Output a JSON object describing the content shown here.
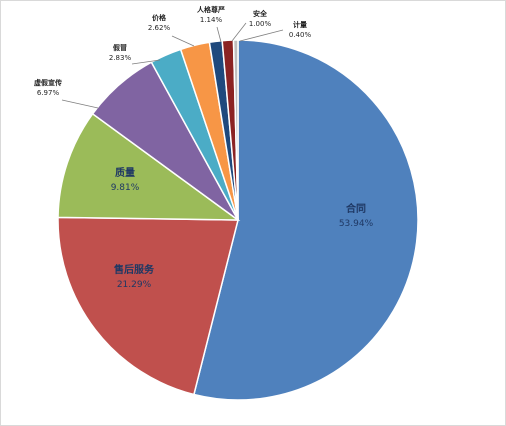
{
  "chart_data": {
    "type": "pie",
    "title": "",
    "legend": "none",
    "slices": [
      {
        "name": "合同",
        "value": 53.94,
        "pct_label": "53.94%",
        "color": "#4f81bd"
      },
      {
        "name": "售后服务",
        "value": 21.29,
        "pct_label": "21.29%",
        "color": "#c0504d"
      },
      {
        "name": "质量",
        "value": 9.81,
        "pct_label": "9.81%",
        "color": "#9bbb59"
      },
      {
        "name": "虚假宣传",
        "value": 6.97,
        "pct_label": "6.97%",
        "color": "#8064a2"
      },
      {
        "name": "假冒",
        "value": 2.83,
        "pct_label": "2.83%",
        "color": "#4bacc6"
      },
      {
        "name": "价格",
        "value": 2.62,
        "pct_label": "2.62%",
        "color": "#f79646"
      },
      {
        "name": "人格尊严",
        "value": 1.14,
        "pct_label": "1.14%",
        "color": "#1f497d"
      },
      {
        "name": "安全",
        "value": 1.0,
        "pct_label": "1.00%",
        "color": "#8b2323"
      },
      {
        "name": "计量",
        "value": 0.4,
        "pct_label": "0.40%",
        "color": "#bfbfbf"
      }
    ]
  }
}
